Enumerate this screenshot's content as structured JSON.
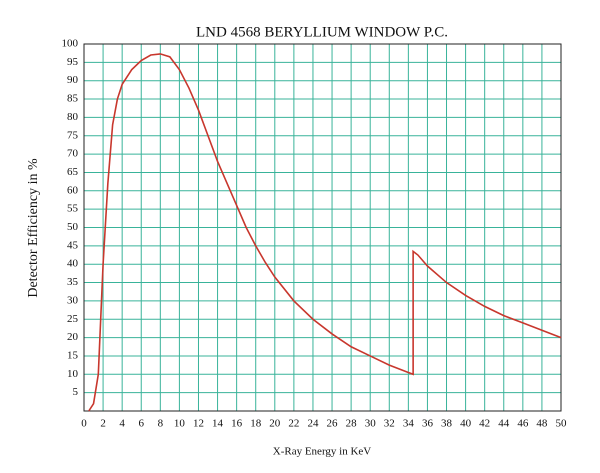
{
  "chart_data": {
    "type": "line",
    "title": "LND 4568 BERYLLIUM  WINDOW P.C.",
    "x_label": "X-Ray Energy in KeV",
    "y_label": "Detector Efficiency in %",
    "x": [
      0.5,
      1,
      1.5,
      2,
      2.5,
      3,
      3.5,
      4,
      5,
      6,
      7,
      8,
      9,
      10,
      11,
      12,
      13,
      14,
      15,
      16,
      17,
      18,
      19,
      20,
      22,
      24,
      26,
      28,
      30,
      32,
      34,
      34.5,
      34.5,
      35,
      36,
      38,
      40,
      42,
      44,
      46,
      48,
      50
    ],
    "series": [
      {
        "color": "#c8372d",
        "values": [
          0,
          2,
          10,
          40,
          62,
          78,
          85,
          89,
          93,
          95.5,
          97,
          97.3,
          96.5,
          93,
          88,
          82,
          75,
          68,
          62,
          56,
          50,
          45,
          40.5,
          36.5,
          30,
          25,
          21,
          17.5,
          15,
          12.5,
          10.5,
          10,
          43.5,
          42.5,
          39.5,
          35,
          31.5,
          28.5,
          26,
          24,
          22,
          20
        ]
      }
    ],
    "xlim": [
      0,
      50
    ],
    "ylim": [
      0,
      100
    ],
    "xticks": [
      0,
      2,
      4,
      6,
      8,
      10,
      12,
      14,
      16,
      18,
      20,
      22,
      24,
      26,
      28,
      30,
      32,
      34,
      36,
      38,
      40,
      42,
      44,
      46,
      48,
      50
    ],
    "yticks": [
      5,
      10,
      15,
      20,
      25,
      30,
      35,
      40,
      45,
      50,
      55,
      60,
      65,
      70,
      75,
      80,
      85,
      90,
      95,
      100
    ],
    "grid": true
  }
}
